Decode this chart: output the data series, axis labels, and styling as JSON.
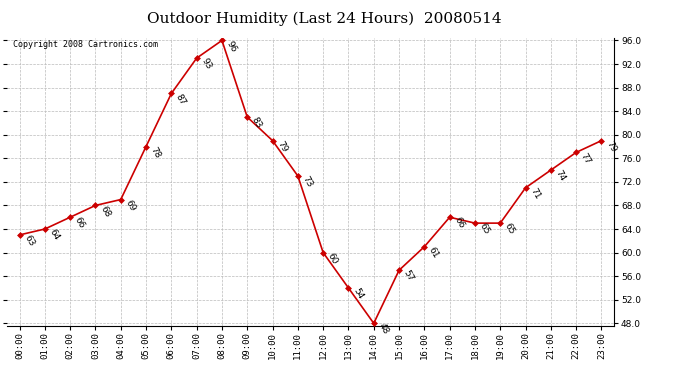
{
  "title": "Outdoor Humidity (Last 24 Hours)  20080514",
  "copyright": "Copyright 2008 Cartronics.com",
  "hours": [
    "00:00",
    "01:00",
    "02:00",
    "03:00",
    "04:00",
    "05:00",
    "06:00",
    "07:00",
    "08:00",
    "09:00",
    "10:00",
    "11:00",
    "12:00",
    "13:00",
    "14:00",
    "15:00",
    "16:00",
    "17:00",
    "18:00",
    "19:00",
    "20:00",
    "21:00",
    "22:00",
    "23:00"
  ],
  "values": [
    63,
    64,
    66,
    68,
    69,
    78,
    87,
    93,
    96,
    83,
    79,
    73,
    60,
    54,
    48,
    57,
    61,
    66,
    65,
    65,
    71,
    74,
    77,
    79
  ],
  "ylim_min": 47.5,
  "ylim_max": 96.5,
  "yticks": [
    48.0,
    52.0,
    56.0,
    60.0,
    64.0,
    68.0,
    72.0,
    76.0,
    80.0,
    84.0,
    88.0,
    92.0,
    96.0
  ],
  "line_color": "#cc0000",
  "marker_color": "#cc0000",
  "grid_color": "#bbbbbb",
  "bg_color": "#ffffff",
  "title_fontsize": 11,
  "label_fontsize": 6.5,
  "tick_fontsize": 6.5,
  "copyright_fontsize": 6,
  "fig_width": 6.9,
  "fig_height": 3.75,
  "dpi": 100
}
